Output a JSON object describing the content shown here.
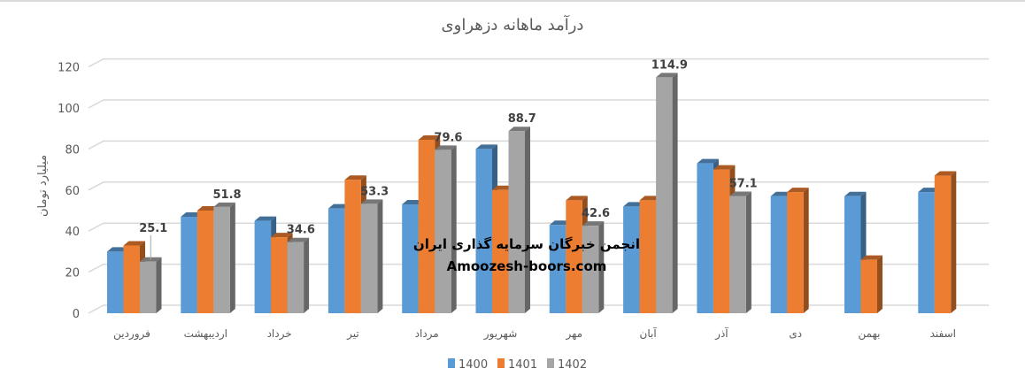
{
  "chart_data": {
    "type": "bar",
    "style": "3d-clustered-column",
    "title": "درآمد ماهانه دزهراوی",
    "ylabel": "میلیارد تومان",
    "xlabel": "",
    "ylim": [
      0,
      120
    ],
    "yticks": [
      0,
      20,
      40,
      60,
      80,
      100,
      120
    ],
    "grid": true,
    "legend_position": "bottom",
    "categories": [
      "فروردین",
      "اردیبهشت",
      "خرداد",
      "تیر",
      "مرداد",
      "شهریور",
      "مهر",
      "آبان",
      "آذر",
      "دی",
      "بهمن",
      "اسفند"
    ],
    "series": [
      {
        "name": "1400",
        "color": "#5b9bd5",
        "values": [
          30,
          47,
          45,
          51,
          53,
          80,
          43,
          52,
          73,
          57,
          57,
          59
        ]
      },
      {
        "name": "1401",
        "color": "#ed7d31",
        "values": [
          33,
          50,
          37,
          65,
          84.5,
          60,
          55,
          55,
          70,
          59,
          26,
          67
        ]
      },
      {
        "name": "1402",
        "color": "#a5a5a5",
        "values": [
          25.1,
          51.8,
          34.6,
          53.3,
          79.6,
          88.7,
          42.6,
          114.9,
          57.1,
          null,
          null,
          null
        ]
      }
    ],
    "data_labels": {
      "series": "1402",
      "labels": [
        "25.1",
        "51.8",
        "34.6",
        "53.3",
        "79.6",
        "88.7",
        "42.6",
        "114.9",
        "57.1"
      ]
    }
  },
  "watermark": {
    "line1": "انجمن خبرگان سرمایه گذاری ایران",
    "line2": "Amoozesh-boors.com"
  }
}
